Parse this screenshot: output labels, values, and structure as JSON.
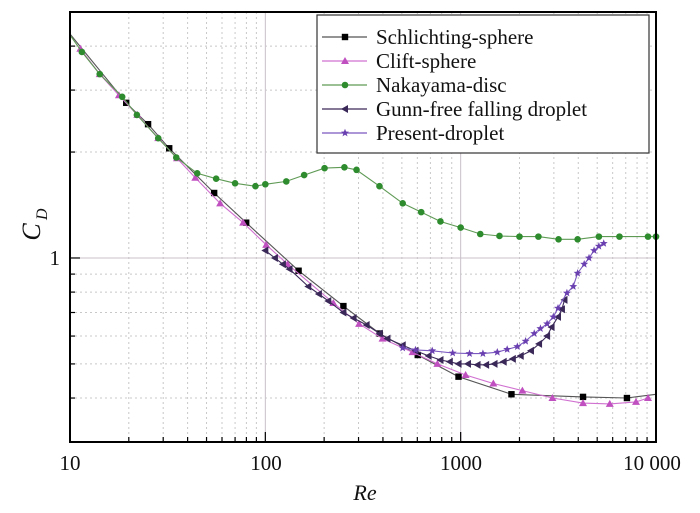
{
  "chart_data": {
    "type": "line",
    "xlabel": "Re",
    "ylabel_main": "C",
    "ylabel_sub": "D",
    "x_scale": "log",
    "y_scale": "log",
    "xlim": [
      10,
      10000
    ],
    "ylim": [
      0.3,
      5
    ],
    "x_tick_labels": [
      {
        "value": 10,
        "label": "10"
      },
      {
        "value": 100,
        "label": "100"
      },
      {
        "value": 1000,
        "label": "1000"
      },
      {
        "value": 10000,
        "label": "10 000"
      }
    ],
    "y_tick_labels": [
      {
        "value": 1,
        "label": "1"
      }
    ],
    "grid": true,
    "legend_position": "top-right",
    "series": [
      {
        "name": "Schlichting-sphere",
        "color": "#000000",
        "line_color": "#555555",
        "marker": "square",
        "x": [
          10,
          19.4,
          25.1,
          32.2,
          54.7,
          79.8,
          148,
          251,
          385,
          603,
          975,
          1820,
          4230,
          7100,
          10000
        ],
        "y": [
          4.33,
          2.76,
          2.4,
          2.05,
          1.53,
          1.26,
          0.92,
          0.73,
          0.61,
          0.53,
          0.46,
          0.41,
          0.403,
          0.4,
          0.41
        ],
        "marked": [
          false,
          true,
          true,
          true,
          true,
          true,
          true,
          true,
          true,
          true,
          true,
          true,
          true,
          true,
          false
        ]
      },
      {
        "name": "Clift-sphere",
        "color": "#c050c0",
        "line_color": "#d070d0",
        "marker": "triangle-up",
        "x": [
          11.3,
          14.2,
          17.8,
          22.1,
          28.3,
          35.3,
          43.8,
          58.7,
          77,
          101,
          130,
          223,
          302,
          398,
          567,
          760,
          1060,
          1470,
          2070,
          2950,
          4230,
          5800,
          7900,
          9100
        ],
        "y": [
          3.93,
          3.33,
          2.9,
          2.55,
          2.19,
          1.92,
          1.69,
          1.43,
          1.26,
          1.09,
          0.96,
          0.745,
          0.65,
          0.59,
          0.54,
          0.5,
          0.465,
          0.44,
          0.42,
          0.4,
          0.387,
          0.385,
          0.39,
          0.4
        ]
      },
      {
        "name": "Nakayama-disc",
        "color": "#2e8b2e",
        "line_color": "#5f9a55",
        "marker": "circle",
        "x": [
          10,
          11.5,
          14.2,
          18.5,
          22,
          28.3,
          35,
          44.8,
          56,
          70,
          89,
          100,
          128,
          158,
          201,
          254,
          293,
          384,
          505,
          628,
          788,
          1000,
          1260,
          1580,
          2000,
          2500,
          3170,
          3970,
          5100,
          6500,
          9100,
          10000
        ],
        "y": [
          4.3,
          3.85,
          3.33,
          2.87,
          2.55,
          2.19,
          1.93,
          1.74,
          1.68,
          1.63,
          1.6,
          1.62,
          1.65,
          1.72,
          1.8,
          1.81,
          1.78,
          1.6,
          1.43,
          1.35,
          1.27,
          1.22,
          1.17,
          1.155,
          1.15,
          1.15,
          1.13,
          1.13,
          1.15,
          1.15,
          1.15,
          1.15
        ],
        "marked": [
          false,
          true,
          true,
          true,
          true,
          true,
          true,
          true,
          true,
          true,
          true,
          true,
          true,
          true,
          true,
          true,
          true,
          true,
          true,
          true,
          true,
          true,
          true,
          true,
          true,
          true,
          true,
          true,
          true,
          true,
          true,
          true
        ]
      },
      {
        "name": "Gunn-free falling droplet",
        "color": "#3a2858",
        "line_color": "#3a2858",
        "marker": "triangle-left",
        "x": [
          100,
          112,
          123,
          133,
          166,
          188,
          210,
          251,
          283,
          330,
          385,
          422,
          505,
          587,
          685,
          788,
          880,
          975,
          1090,
          1220,
          1350,
          1490,
          1660,
          1850,
          2030,
          2290,
          2520,
          2770,
          2920,
          3150,
          3300,
          3400
        ],
        "y": [
          1.05,
          1.0,
          0.96,
          0.93,
          0.83,
          0.79,
          0.755,
          0.7,
          0.675,
          0.645,
          0.61,
          0.59,
          0.565,
          0.545,
          0.527,
          0.513,
          0.507,
          0.5,
          0.5,
          0.497,
          0.497,
          0.5,
          0.507,
          0.517,
          0.527,
          0.545,
          0.57,
          0.6,
          0.636,
          0.68,
          0.715,
          0.76
        ]
      },
      {
        "name": "Present-droplet",
        "color": "#6a40b0",
        "line_color": "#7a58c0",
        "marker": "star",
        "x": [
          505,
          587,
          715,
          910,
          1110,
          1300,
          1540,
          1730,
          1950,
          2150,
          2380,
          2560,
          2770,
          2980,
          3150,
          3500,
          3770,
          3970,
          4290,
          4540,
          4820,
          5100,
          5400
        ],
        "y": [
          0.555,
          0.548,
          0.545,
          0.537,
          0.535,
          0.535,
          0.54,
          0.55,
          0.56,
          0.58,
          0.61,
          0.63,
          0.65,
          0.68,
          0.72,
          0.795,
          0.83,
          0.905,
          0.96,
          1.0,
          1.05,
          1.08,
          1.1
        ]
      }
    ]
  }
}
